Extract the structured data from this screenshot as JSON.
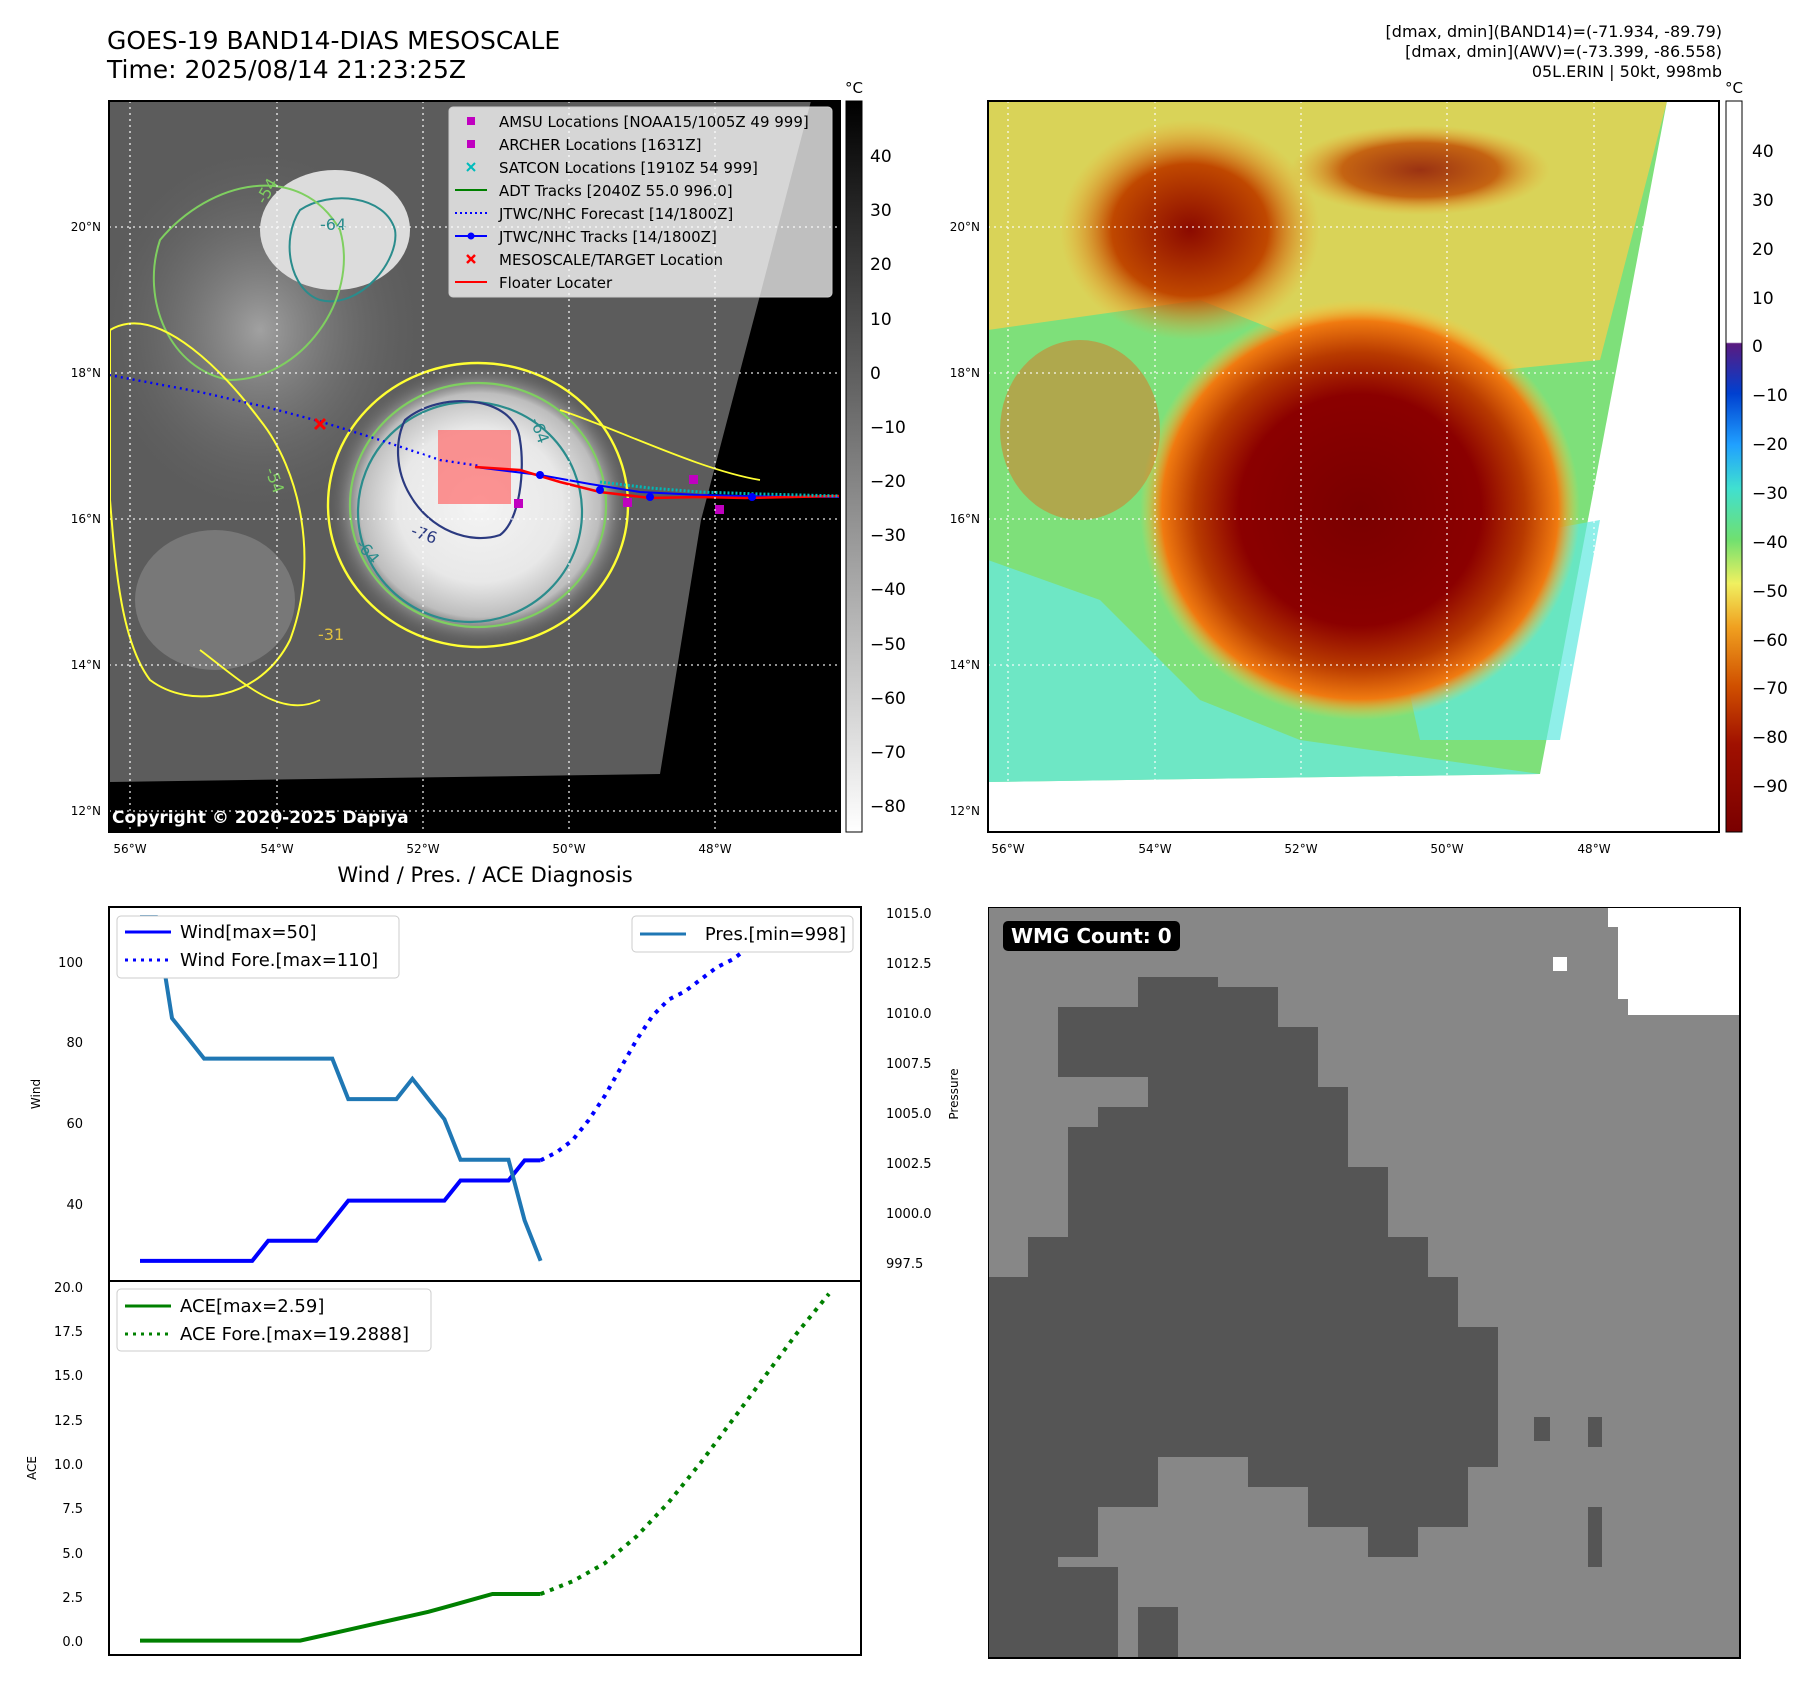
{
  "header": {
    "title_line1": "GOES-19 BAND14-DIAS MESOSCALE",
    "title_line2": "Time: 2025/08/14 21:23:25Z",
    "info_line1": "[dmax, dmin](BAND14)=(-71.934, -89.79)",
    "info_line2": "[dmax, dmin](AWV)=(-73.399, -86.558)",
    "info_line3": "05L.ERIN | 50kt, 998mb"
  },
  "map": {
    "lat_ticks": [
      "20°N",
      "18°N",
      "16°N",
      "14°N",
      "12°N"
    ],
    "lon_ticks": [
      "56°W",
      "54°W",
      "52°W",
      "50°W",
      "48°W"
    ],
    "copyright": "Copyright © 2020-2025 Dapiya",
    "contour_labels": [
      "-54",
      "-64",
      "-54",
      "-64",
      "-76",
      "-31",
      "-64"
    ],
    "legend": [
      {
        "label": "AMSU Locations [NOAA15/1005Z 49 999]",
        "marker": "square",
        "color": "#c000c0"
      },
      {
        "label": "ARCHER Locations [1631Z]",
        "marker": "square",
        "color": "#c000c0"
      },
      {
        "label": "SATCON Locations [1910Z 54 999]",
        "marker": "x",
        "color": "#00bcbc"
      },
      {
        "label": "ADT Tracks [2040Z 55.0 996.0]",
        "marker": "line",
        "color": "#008000"
      },
      {
        "label": "JTWC/NHC Forecast [14/1800Z]",
        "marker": "dotted",
        "color": "#0000ff"
      },
      {
        "label": "JTWC/NHC Tracks [14/1800Z]",
        "marker": "line-dot",
        "color": "#0000ff"
      },
      {
        "label": "MESOSCALE/TARGET Location",
        "marker": "x",
        "color": "#ff0000"
      },
      {
        "label": "Floater Locater",
        "marker": "line",
        "color": "#ff0000"
      }
    ]
  },
  "colorbar_left": {
    "unit": "°C",
    "ticks": [
      "40",
      "30",
      "20",
      "10",
      "0",
      "−10",
      "−20",
      "−30",
      "−40",
      "−50",
      "−60",
      "−70",
      "−80"
    ]
  },
  "colorbar_right": {
    "unit": "°C",
    "ticks": [
      "40",
      "30",
      "20",
      "10",
      "0",
      "−10",
      "−20",
      "−30",
      "−40",
      "−50",
      "−60",
      "−70",
      "−80",
      "−90"
    ]
  },
  "diagnosis": {
    "title": "Wind / Pres. / ACE Diagnosis",
    "wind_ylabel": "Wind",
    "pressure_ylabel": "Pressure",
    "ace_ylabel": "ACE",
    "legend_wind": "Wind[max=50]",
    "legend_wind_fore": "Wind Fore.[max=110]",
    "legend_pres": "Pres.[min=998]",
    "legend_ace": "ACE[max=2.59]",
    "legend_ace_fore": "ACE Fore.[max=19.2888]",
    "wind_ticks": [
      "100",
      "80",
      "60",
      "40"
    ],
    "pres_ticks": [
      "1015.0",
      "1012.5",
      "1010.0",
      "1007.5",
      "1005.0",
      "1002.5",
      "1000.0",
      "997.5"
    ],
    "ace_ticks": [
      "20.0",
      "17.5",
      "15.0",
      "12.5",
      "10.0",
      "7.5",
      "5.0",
      "2.5",
      "0.0"
    ]
  },
  "wmg": {
    "label": "WMG Count: 0"
  },
  "chart_data": [
    {
      "type": "line",
      "title": "Wind / Pres. / ACE Diagnosis",
      "ylabel": "Wind",
      "ylim": [
        20,
        113
      ],
      "series": [
        {
          "name": "Wind[max=50]",
          "style": "solid",
          "color": "#0000ff",
          "x": [
            0,
            1,
            2,
            3,
            4,
            5,
            6,
            7,
            8,
            9,
            10,
            11,
            12,
            13,
            14,
            15,
            16,
            17,
            18,
            19,
            20,
            21,
            22,
            23,
            24,
            25
          ],
          "y": [
            25,
            25,
            25,
            25,
            25,
            25,
            25,
            25,
            30,
            30,
            30,
            30,
            35,
            40,
            40,
            40,
            40,
            40,
            40,
            40,
            45,
            45,
            45,
            45,
            50,
            50
          ]
        },
        {
          "name": "Wind Fore.[max=110]",
          "style": "dotted",
          "color": "#0000ff",
          "x": [
            25,
            26,
            27,
            28,
            29,
            30,
            31,
            32,
            33,
            34,
            35,
            36,
            37,
            38,
            39,
            40,
            41,
            42,
            43
          ],
          "y": [
            50,
            52,
            55,
            60,
            66,
            73,
            80,
            86,
            90,
            92,
            95,
            98,
            100,
            103,
            103,
            104,
            105,
            106,
            110
          ]
        }
      ]
    },
    {
      "type": "line",
      "ylabel": "Pressure",
      "ylim": [
        997,
        1015.5
      ],
      "series": [
        {
          "name": "Pres.[min=998]",
          "style": "solid",
          "color": "#1f77b4",
          "x": [
            0,
            1,
            2,
            3,
            4,
            5,
            6,
            7,
            8,
            9,
            10,
            11,
            12,
            13,
            14,
            15,
            16,
            17,
            18,
            19,
            20,
            21,
            22,
            23,
            24,
            25
          ],
          "y": [
            1015,
            1015,
            1010,
            1009,
            1008,
            1008,
            1008,
            1008,
            1008,
            1008,
            1008,
            1008,
            1008,
            1006,
            1006,
            1006,
            1006,
            1007,
            1006,
            1005,
            1003,
            1003,
            1003,
            1003,
            1000,
            998
          ]
        }
      ]
    },
    {
      "type": "line",
      "ylabel": "ACE",
      "ylim": [
        -0.8,
        20
      ],
      "series": [
        {
          "name": "ACE[max=2.59]",
          "style": "solid",
          "color": "#008000",
          "x": [
            0,
            1,
            2,
            3,
            4,
            5,
            6,
            7,
            8,
            9,
            10,
            11,
            12,
            13,
            14,
            15,
            16,
            17,
            18,
            19,
            20,
            21,
            22,
            23,
            24,
            25
          ],
          "y": [
            0,
            0,
            0,
            0,
            0,
            0,
            0,
            0,
            0,
            0,
            0,
            0.2,
            0.4,
            0.6,
            0.8,
            1.0,
            1.2,
            1.4,
            1.6,
            1.85,
            2.1,
            2.35,
            2.59,
            2.59,
            2.59,
            2.59
          ]
        },
        {
          "name": "ACE Fore.[max=19.2888]",
          "style": "dotted",
          "color": "#008000",
          "x": [
            25,
            27,
            29,
            31,
            33,
            35,
            37,
            39,
            41,
            43
          ],
          "y": [
            2.59,
            3.3,
            4.3,
            5.8,
            7.7,
            9.9,
            12.3,
            14.7,
            17.1,
            19.29
          ]
        }
      ]
    }
  ]
}
